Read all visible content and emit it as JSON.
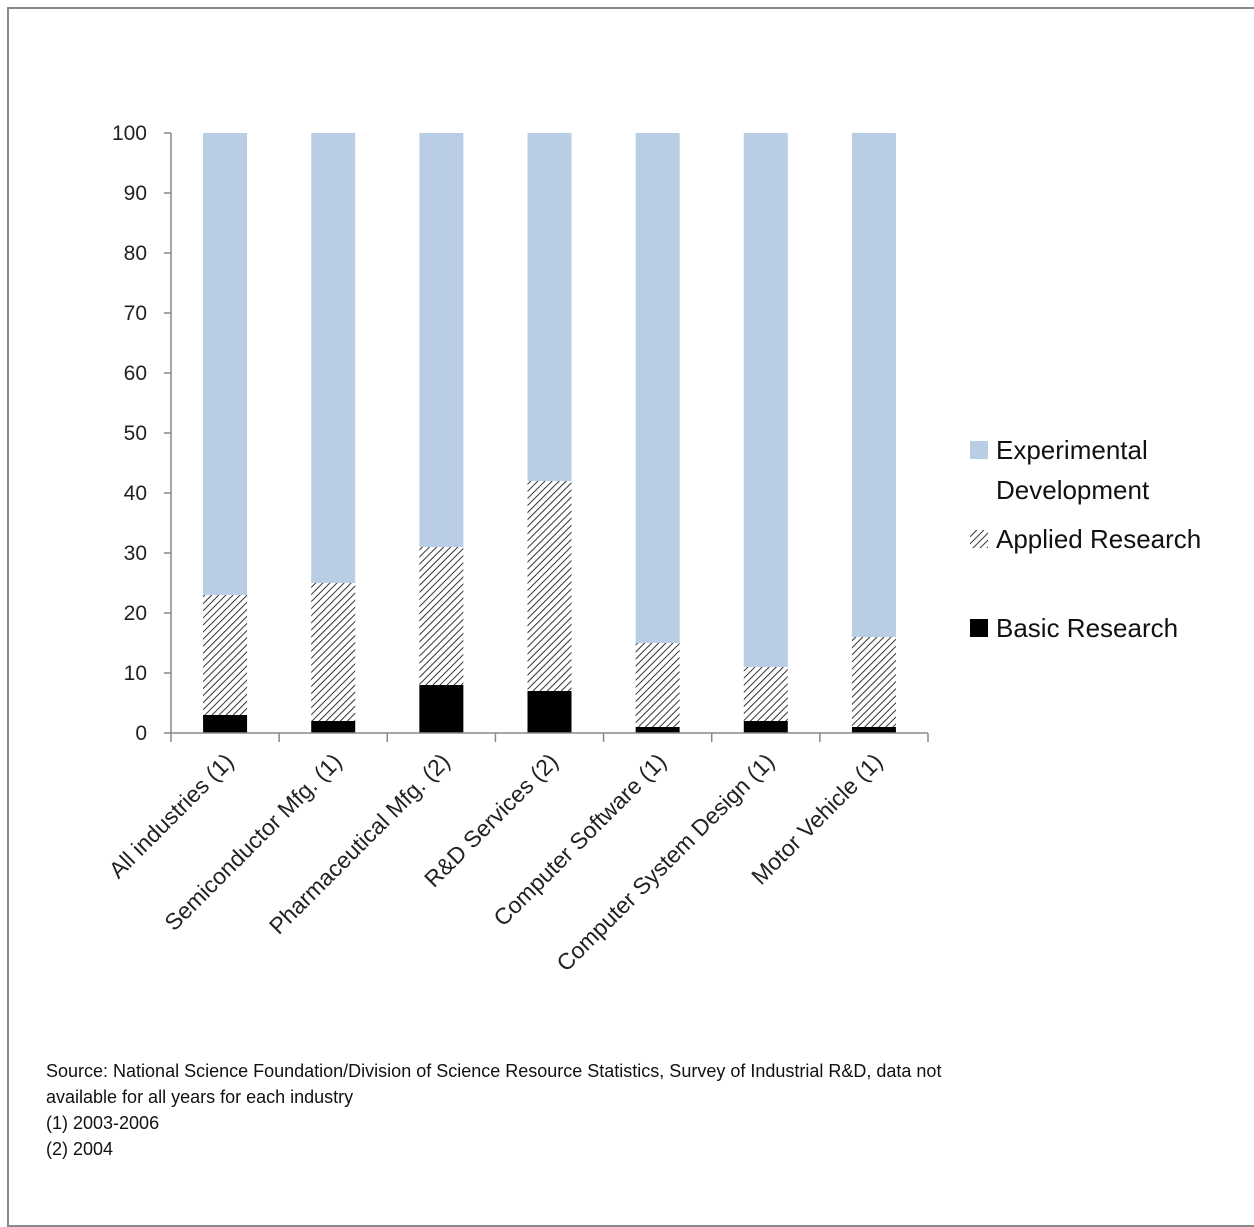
{
  "chart_data": {
    "type": "bar",
    "stacked": true,
    "categories": [
      "All industries (1)",
      "Semiconductor Mfg. (1)",
      "Pharmaceutical Mfg. (2)",
      "R&D Services (2)",
      "Computer Software (1)",
      "Computer System Design (1)",
      "Motor Vehicle (1)"
    ],
    "series": [
      {
        "name": "Basic Research",
        "values": [
          3,
          2,
          8,
          7,
          1,
          2,
          1
        ],
        "color": "#000000",
        "pattern": "solid"
      },
      {
        "name": "Applied Research",
        "values": [
          20,
          23,
          23,
          35,
          14,
          9,
          15
        ],
        "color": "#333333",
        "pattern": "diagonal-hatch"
      },
      {
        "name": "Experimental Development",
        "values": [
          77,
          75,
          69,
          58,
          85,
          89,
          84
        ],
        "color": "#b9cde5",
        "pattern": "solid"
      }
    ],
    "ylim": [
      0,
      100
    ],
    "yticks": [
      0,
      10,
      20,
      30,
      40,
      50,
      60,
      70,
      80,
      90,
      100
    ],
    "grid": false,
    "legend_position": "right",
    "legend": [
      {
        "lines": [
          "Experimental",
          "Development"
        ],
        "series": "Experimental Development"
      },
      {
        "lines": [
          "Applied Research"
        ],
        "series": "Applied Research"
      },
      {
        "lines": [
          "Basic Research"
        ],
        "series": "Basic Research"
      }
    ]
  },
  "source_note": {
    "line1": "Source: National Science Foundation/Division of Science Resource Statistics, Survey of Industrial R&D, data not",
    "line2": "available for all years for each industry",
    "line3": "(1) 2003-2006",
    "line4": "(2) 2004"
  }
}
